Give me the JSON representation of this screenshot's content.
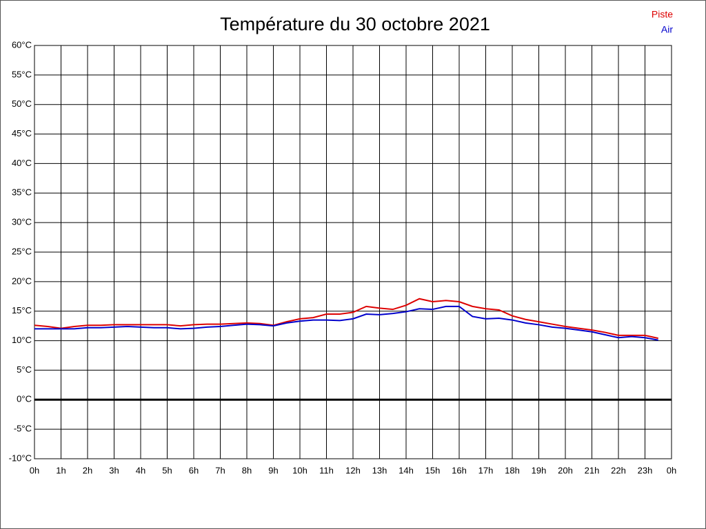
{
  "chart_data": {
    "type": "line",
    "title": "Température du 30 octobre 2021",
    "x": [
      0,
      0.5,
      1,
      1.5,
      2,
      2.5,
      3,
      3.5,
      4,
      4.5,
      5,
      5.5,
      6,
      6.5,
      7,
      7.5,
      8,
      8.5,
      9,
      9.5,
      10,
      10.5,
      11,
      11.5,
      12,
      12.5,
      13,
      13.5,
      14,
      14.5,
      15,
      15.5,
      16,
      16.5,
      17,
      17.5,
      18,
      18.5,
      19,
      19.5,
      20,
      20.5,
      21,
      21.5,
      22,
      22.5,
      23,
      23.5
    ],
    "series": [
      {
        "name": "Piste",
        "color": "#dd0000",
        "values": [
          12.6,
          12.4,
          12.1,
          12.4,
          12.6,
          12.6,
          12.7,
          12.7,
          12.7,
          12.7,
          12.7,
          12.5,
          12.7,
          12.8,
          12.8,
          12.9,
          13.0,
          12.9,
          12.6,
          13.2,
          13.7,
          13.9,
          14.5,
          14.5,
          14.8,
          15.8,
          15.5,
          15.3,
          16.0,
          17.1,
          16.6,
          16.8,
          16.6,
          15.8,
          15.4,
          15.2,
          14.2,
          13.6,
          13.2,
          12.8,
          12.4,
          12.1,
          11.8,
          11.4,
          10.9,
          10.9,
          10.9,
          10.4
        ]
      },
      {
        "name": "Air",
        "color": "#0000cc",
        "values": [
          12.0,
          12.0,
          12.0,
          12.0,
          12.2,
          12.2,
          12.3,
          12.4,
          12.3,
          12.2,
          12.2,
          12.0,
          12.1,
          12.3,
          12.4,
          12.6,
          12.8,
          12.7,
          12.5,
          13.0,
          13.3,
          13.5,
          13.5,
          13.4,
          13.7,
          14.5,
          14.4,
          14.6,
          14.9,
          15.4,
          15.3,
          15.8,
          15.8,
          14.1,
          13.7,
          13.8,
          13.5,
          13.0,
          12.7,
          12.3,
          12.1,
          11.8,
          11.5,
          11.0,
          10.5,
          10.7,
          10.5,
          10.1
        ]
      }
    ],
    "xlim": [
      0,
      24
    ],
    "xticks": [
      {
        "value": 0,
        "label": "0h"
      },
      {
        "value": 1,
        "label": "1h"
      },
      {
        "value": 2,
        "label": "2h"
      },
      {
        "value": 3,
        "label": "3h"
      },
      {
        "value": 4,
        "label": "4h"
      },
      {
        "value": 5,
        "label": "5h"
      },
      {
        "value": 6,
        "label": "6h"
      },
      {
        "value": 7,
        "label": "7h"
      },
      {
        "value": 8,
        "label": "8h"
      },
      {
        "value": 9,
        "label": "9h"
      },
      {
        "value": 10,
        "label": "10h"
      },
      {
        "value": 11,
        "label": "11h"
      },
      {
        "value": 12,
        "label": "12h"
      },
      {
        "value": 13,
        "label": "13h"
      },
      {
        "value": 14,
        "label": "14h"
      },
      {
        "value": 15,
        "label": "15h"
      },
      {
        "value": 16,
        "label": "16h"
      },
      {
        "value": 17,
        "label": "17h"
      },
      {
        "value": 18,
        "label": "18h"
      },
      {
        "value": 19,
        "label": "19h"
      },
      {
        "value": 20,
        "label": "20h"
      },
      {
        "value": 21,
        "label": "21h"
      },
      {
        "value": 22,
        "label": "22h"
      },
      {
        "value": 23,
        "label": "23h"
      },
      {
        "value": 24,
        "label": "0h"
      }
    ],
    "ylim": [
      -10,
      60
    ],
    "yticks": [
      {
        "value": -10,
        "label": "-10°C"
      },
      {
        "value": -5,
        "label": "-5°C"
      },
      {
        "value": 0,
        "label": "0°C"
      },
      {
        "value": 5,
        "label": "5°C"
      },
      {
        "value": 10,
        "label": "10°C"
      },
      {
        "value": 15,
        "label": "15°C"
      },
      {
        "value": 20,
        "label": "20°C"
      },
      {
        "value": 25,
        "label": "25°C"
      },
      {
        "value": 30,
        "label": "30°C"
      },
      {
        "value": 35,
        "label": "35°C"
      },
      {
        "value": 40,
        "label": "40°C"
      },
      {
        "value": 45,
        "label": "45°C"
      },
      {
        "value": 50,
        "label": "50°C"
      },
      {
        "value": 55,
        "label": "55°C"
      },
      {
        "value": 60,
        "label": "60°C"
      }
    ],
    "grid": true,
    "legend": "top-right"
  }
}
